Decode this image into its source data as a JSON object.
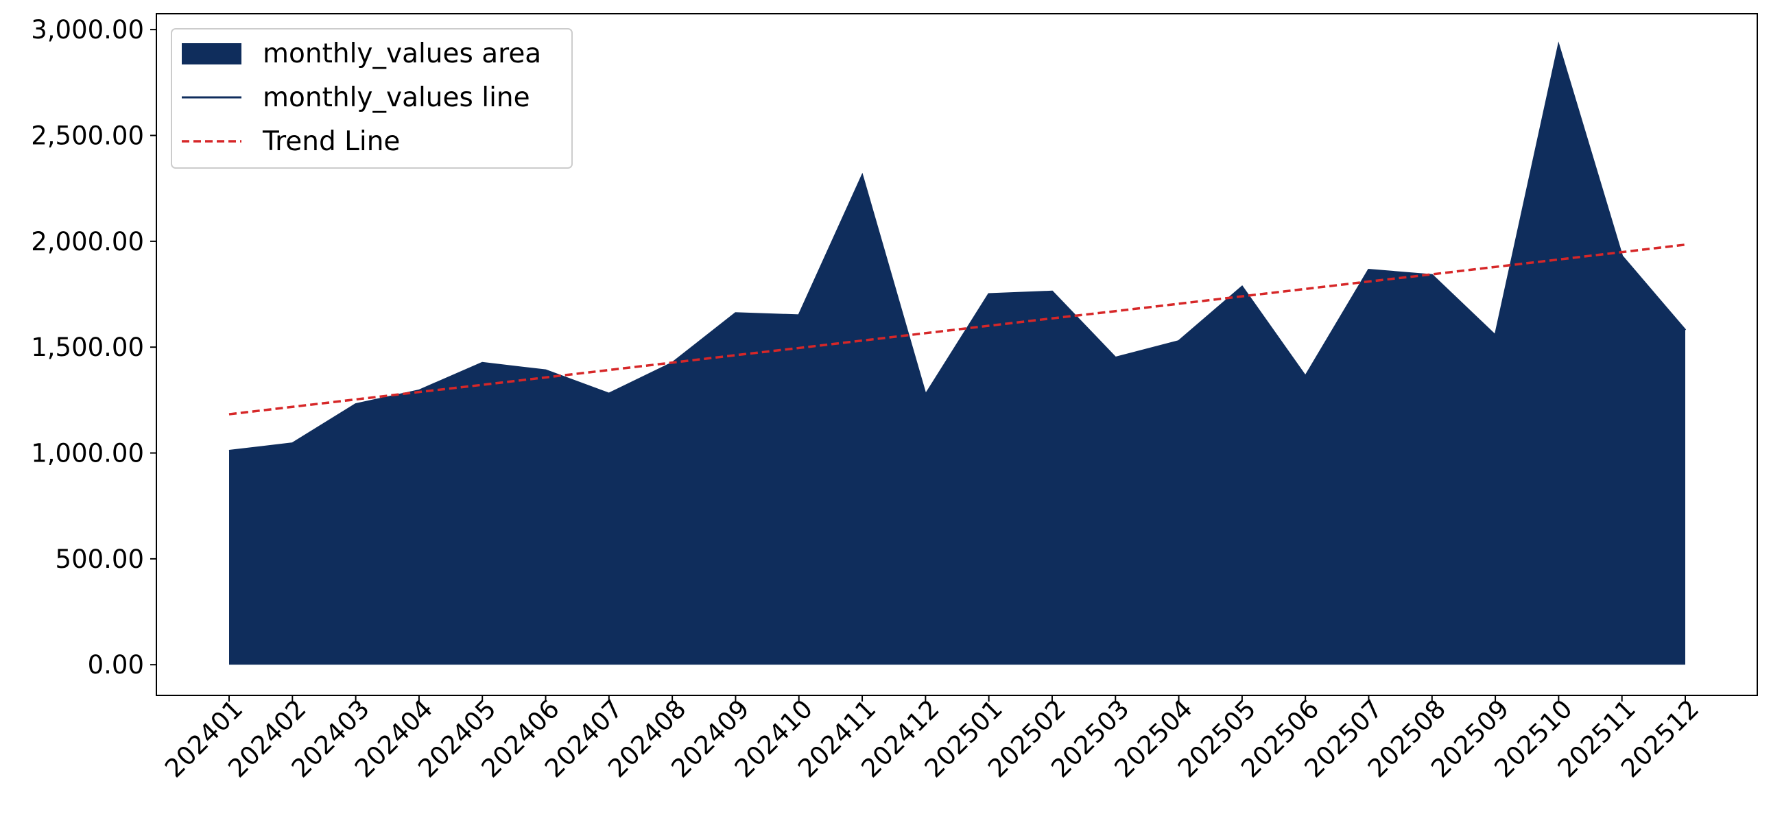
{
  "chart_data": {
    "type": "area",
    "categories": [
      "202401",
      "202402",
      "202403",
      "202404",
      "202405",
      "202406",
      "202407",
      "202408",
      "202409",
      "202410",
      "202411",
      "202412",
      "202501",
      "202502",
      "202503",
      "202504",
      "202505",
      "202506",
      "202507",
      "202508",
      "202509",
      "202510",
      "202511",
      "202512"
    ],
    "series": [
      {
        "name": "monthly_values area",
        "kind": "area",
        "color": "#0f2d5c",
        "values": [
          1010,
          1045,
          1230,
          1295,
          1425,
          1390,
          1280,
          1425,
          1660,
          1650,
          2310,
          1275,
          1750,
          1762,
          1450,
          1528,
          1785,
          1362,
          1865,
          1840,
          1555,
          2925,
          1930,
          1580
        ]
      },
      {
        "name": "monthly_values line",
        "kind": "line",
        "color": "#0f2d5c",
        "values": [
          1010,
          1045,
          1230,
          1295,
          1425,
          1390,
          1280,
          1425,
          1660,
          1650,
          2310,
          1275,
          1750,
          1762,
          1450,
          1528,
          1785,
          1362,
          1865,
          1840,
          1555,
          2925,
          1930,
          1580
        ]
      },
      {
        "name": "Trend Line",
        "kind": "dashed-line",
        "color": "#d62728",
        "values": [
          1183,
          1218,
          1253,
          1288,
          1322,
          1357,
          1392,
          1427,
          1462,
          1496,
          1531,
          1566,
          1601,
          1636,
          1670,
          1705,
          1740,
          1775,
          1810,
          1844,
          1879,
          1914,
          1949,
          1984
        ]
      }
    ],
    "ylim": [
      -145,
      3075
    ],
    "yticks": [
      0,
      500,
      1000,
      1500,
      2000,
      2500,
      3000
    ],
    "ytick_labels": [
      "0.00",
      "500.00",
      "1,000.00",
      "1,500.00",
      "2,000.00",
      "2,500.00",
      "3,000.00"
    ],
    "xlabel": "",
    "ylabel": "",
    "title": "",
    "grid": false,
    "legend_placement": "top-left"
  }
}
